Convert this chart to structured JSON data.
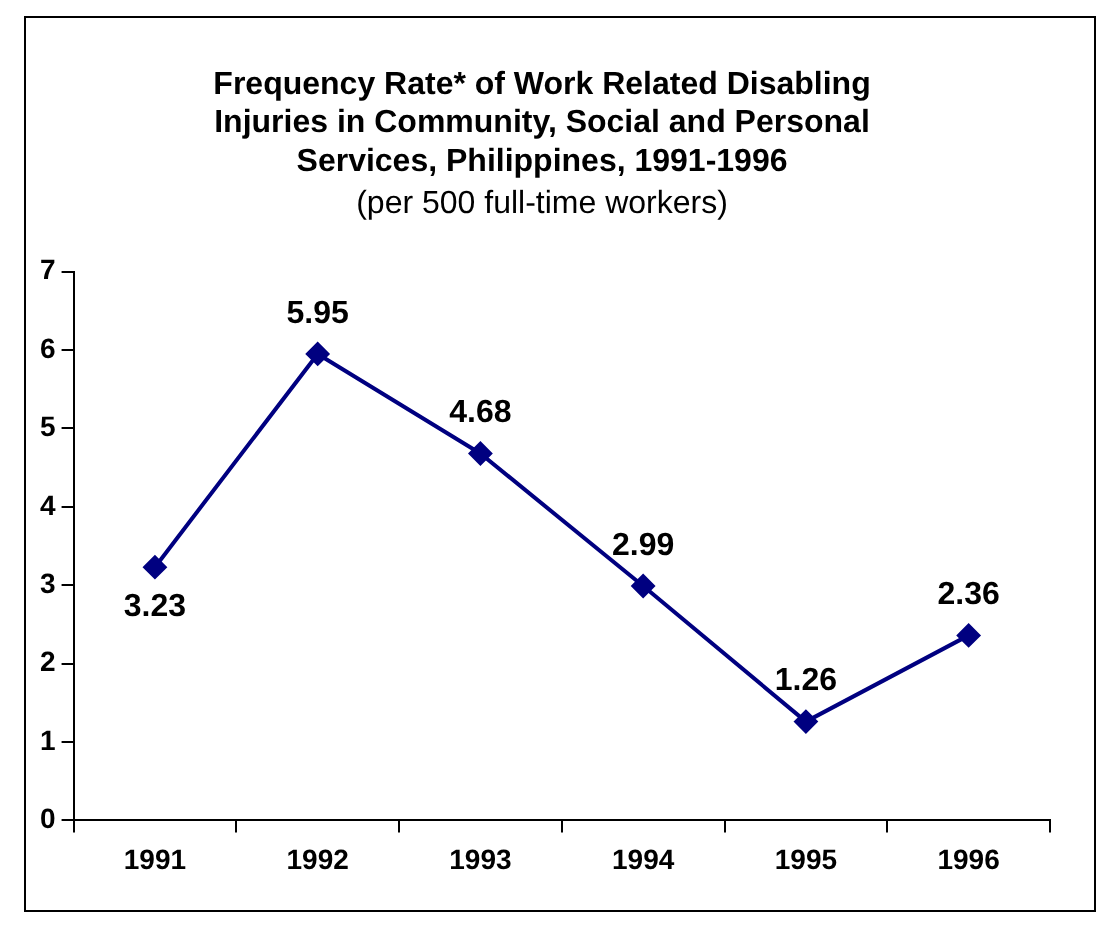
{
  "chart_data": {
    "type": "line",
    "title": "Frequency Rate* of Work Related Disabling Injuries in Community, Social and Personal Services, Philippines, 1991-1996",
    "subtitle": "(per 500 full-time workers)",
    "categories": [
      "1991",
      "1992",
      "1993",
      "1994",
      "1995",
      "1996"
    ],
    "series": [
      {
        "color": "#000080",
        "values": [
          3.23,
          5.95,
          4.68,
          2.99,
          1.26,
          2.36
        ]
      }
    ],
    "ylim": [
      0,
      7
    ],
    "yticks": [
      0,
      1,
      2,
      3,
      4,
      5,
      6,
      7
    ],
    "grid": false,
    "legend": false,
    "marker": "diamond",
    "line_style": "solid",
    "data_labels": true
  }
}
